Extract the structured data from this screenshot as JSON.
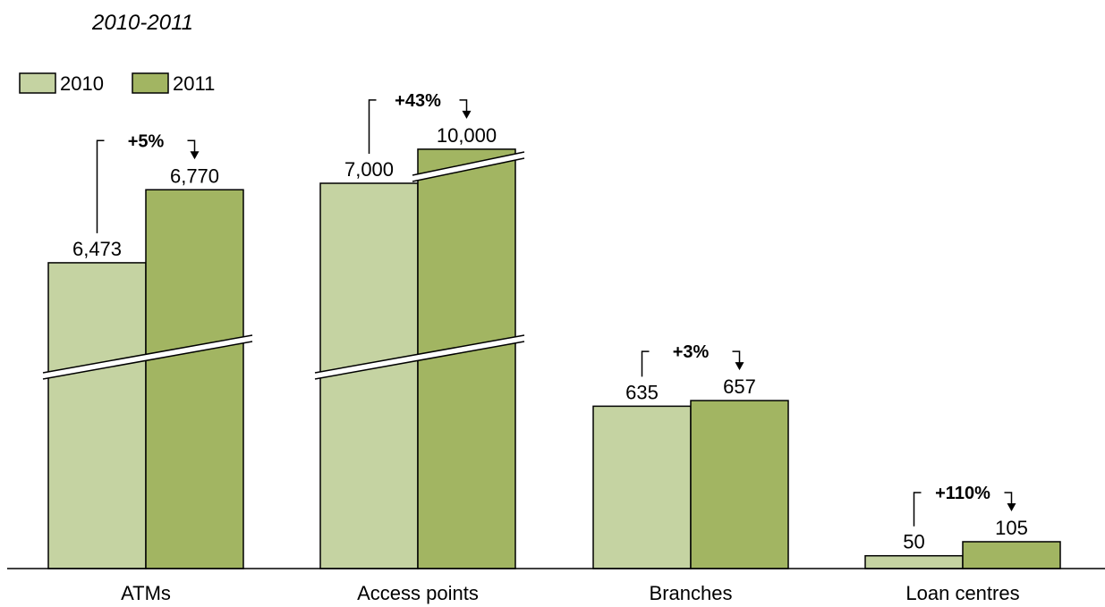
{
  "chart_data": {
    "type": "bar",
    "subtitle": "2010-2011",
    "categories": [
      "ATMs",
      "Access points",
      "Branches",
      "Loan centres"
    ],
    "series": [
      {
        "name": "2010",
        "color": "#c5d3a2",
        "values": [
          6473,
          7000,
          635,
          50
        ],
        "labels": [
          "6,473",
          "7,000",
          "635",
          "50"
        ]
      },
      {
        "name": "2011",
        "color": "#a2b562",
        "values": [
          6770,
          10000,
          657,
          105
        ],
        "labels": [
          "6,770",
          "10,000",
          "657",
          "105"
        ]
      }
    ],
    "changes": [
      "+5%",
      "+43%",
      "+3%",
      "+110%"
    ],
    "axis_breaks": [
      true,
      true,
      false,
      false
    ],
    "legend_position": "top-left",
    "grid": false
  }
}
